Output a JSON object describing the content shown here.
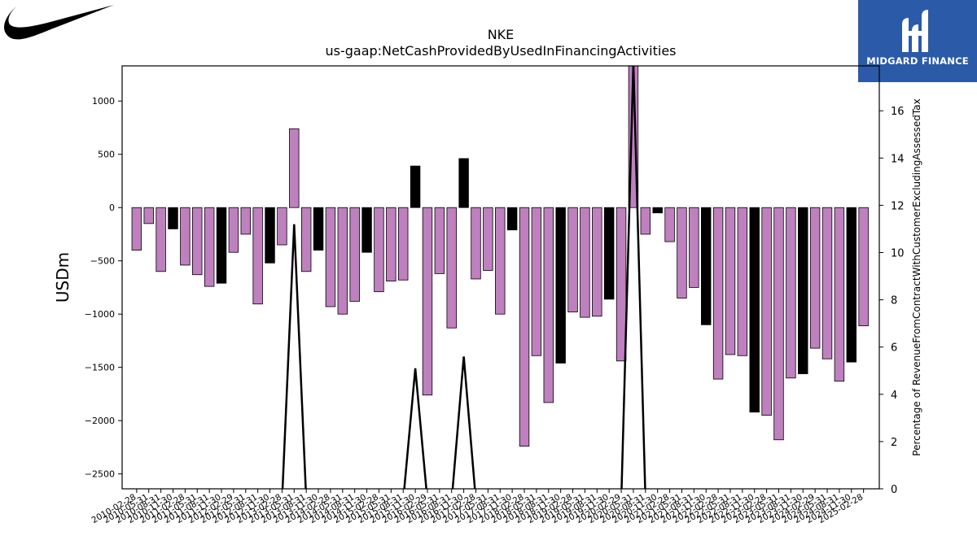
{
  "header": {
    "ticker": "NKE",
    "metric": "us-gaap:NetCashProvidedByUsedInFinancingActivities",
    "brand_name": "MIDGARD FINANCE"
  },
  "logos": {
    "left": "nike-swoosh-logo",
    "right": "midgard-finance-logo"
  },
  "colors": {
    "bar_regular": "#bf80bf",
    "bar_highlight": "#000000",
    "line": "#000000",
    "brand_bg": "#2b5aa8"
  },
  "chart_data": {
    "type": "bar",
    "ylabel": "USDm",
    "y2label": "Percentage of RevenueFromContractWithCustomerExcludingAssessedTax",
    "ylim": [
      -2640,
      1330
    ],
    "y2lim": [
      0,
      17.9
    ],
    "yticks": [
      -2500,
      -2000,
      -1500,
      -1000,
      -500,
      0,
      500,
      1000
    ],
    "y2ticks": [
      0,
      2,
      4,
      6,
      8,
      10,
      12,
      14,
      16
    ],
    "categories": [
      "2010-02-28",
      "2010-05-31",
      "2010-08-31",
      "2010-11-30",
      "2011-02-28",
      "2011-05-31",
      "2011-08-31",
      "2011-11-30",
      "2012-02-29",
      "2012-05-31",
      "2012-08-31",
      "2012-11-30",
      "2013-02-28",
      "2013-05-31",
      "2013-08-31",
      "2013-11-30",
      "2014-02-28",
      "2014-05-31",
      "2014-08-31",
      "2014-11-30",
      "2015-02-28",
      "2015-05-31",
      "2015-08-31",
      "2015-11-30",
      "2016-02-29",
      "2016-05-31",
      "2016-08-31",
      "2016-11-30",
      "2017-02-28",
      "2017-05-31",
      "2017-08-31",
      "2017-11-30",
      "2018-02-28",
      "2018-05-31",
      "2018-08-31",
      "2018-11-30",
      "2019-02-28",
      "2019-05-31",
      "2019-08-31",
      "2019-11-30",
      "2020-02-29",
      "2020-05-31",
      "2020-08-31",
      "2020-11-30",
      "2021-02-28",
      "2021-05-31",
      "2021-08-31",
      "2021-11-30",
      "2022-02-28",
      "2022-05-31",
      "2022-08-31",
      "2022-11-30",
      "2023-02-28",
      "2023-05-31",
      "2023-08-31",
      "2023-11-30",
      "2024-02-29",
      "2024-05-31",
      "2024-08-31",
      "2024-11-30",
      "2025-02-28"
    ],
    "tick_labels": [
      "2010-02-28",
      "2010-05-31",
      "2010-08-31",
      "2010-11-30",
      "2011-02-28",
      "2011-05-31",
      "2011-08-31",
      "2011-11-30",
      "2012-02-29",
      "2012-05-31",
      "2012-08-31",
      "2012-11-30",
      "2013-02-28",
      "2013-05-31",
      "2013-08-31",
      "2013-11-30",
      "2014-02-28",
      "2014-05-31",
      "2014-08-31",
      "2014-11-30",
      "2015-02-28",
      "2015-05-31",
      "2015-08-31",
      "2015-11-30",
      "2016-02-29",
      "2016-05-31",
      "2016-08-31",
      "2016-11-30",
      "2017-02-28",
      "2017-05-31",
      "2017-08-31",
      "2017-11-30",
      "2018-02-28",
      "2018-05-31",
      "2018-08-31",
      "2018-11-30",
      "2019-02-28",
      "2019-05-31",
      "2019-08-31",
      "2019-11-30",
      "2020-02-29",
      "2020-05-31",
      "2020-08-31",
      "2020-11-30",
      "2021-02-28",
      "2021-05-31",
      "2021-08-31",
      "2021-11-30",
      "2022-02-28",
      "2022-05-31",
      "2022-08-31",
      "2022-11-30",
      "2023-02-28",
      "2023-05-31",
      "2023-08-31",
      "2023-11-30",
      "2024-02-29",
      "2024-05-31",
      "2024-08-31",
      "2024-11-30",
      "2025-02-28"
    ],
    "values": [
      -400,
      -150,
      -600,
      -200,
      -540,
      -630,
      -740,
      -710,
      -420,
      -250,
      -905,
      -520,
      -350,
      740,
      -600,
      -400,
      -930,
      -1000,
      -880,
      -420,
      -790,
      -690,
      -680,
      390,
      -1760,
      -620,
      -1130,
      460,
      -670,
      -590,
      -1000,
      -210,
      -2240,
      -1390,
      -1830,
      -1460,
      -980,
      -1030,
      -1020,
      -860,
      -1440,
      1340,
      -250,
      -50,
      -320,
      -850,
      -750,
      -1100,
      -1610,
      -1380,
      -1390,
      -1920,
      -1950,
      -2180,
      -1600,
      -1560,
      -1320,
      -1420,
      -1630,
      -1450,
      -1110
    ],
    "highlight": [
      false,
      false,
      false,
      true,
      false,
      false,
      false,
      true,
      false,
      false,
      false,
      true,
      false,
      false,
      false,
      true,
      false,
      false,
      false,
      true,
      false,
      false,
      false,
      true,
      false,
      false,
      false,
      true,
      false,
      false,
      false,
      true,
      false,
      false,
      false,
      true,
      false,
      false,
      false,
      true,
      false,
      false,
      false,
      true,
      false,
      false,
      false,
      true,
      false,
      false,
      false,
      true,
      false,
      false,
      false,
      true,
      false,
      false,
      false,
      true,
      false
    ],
    "line_values": [
      null,
      null,
      null,
      null,
      null,
      null,
      null,
      null,
      null,
      null,
      null,
      null,
      null,
      11.2,
      null,
      null,
      null,
      null,
      null,
      null,
      null,
      null,
      null,
      5.1,
      null,
      null,
      null,
      5.6,
      null,
      null,
      null,
      null,
      null,
      null,
      null,
      null,
      null,
      null,
      null,
      null,
      null,
      18,
      null,
      null,
      null,
      null,
      null,
      null,
      null,
      null,
      null,
      null,
      null,
      null,
      null,
      null,
      null,
      null,
      null,
      null,
      null
    ]
  }
}
